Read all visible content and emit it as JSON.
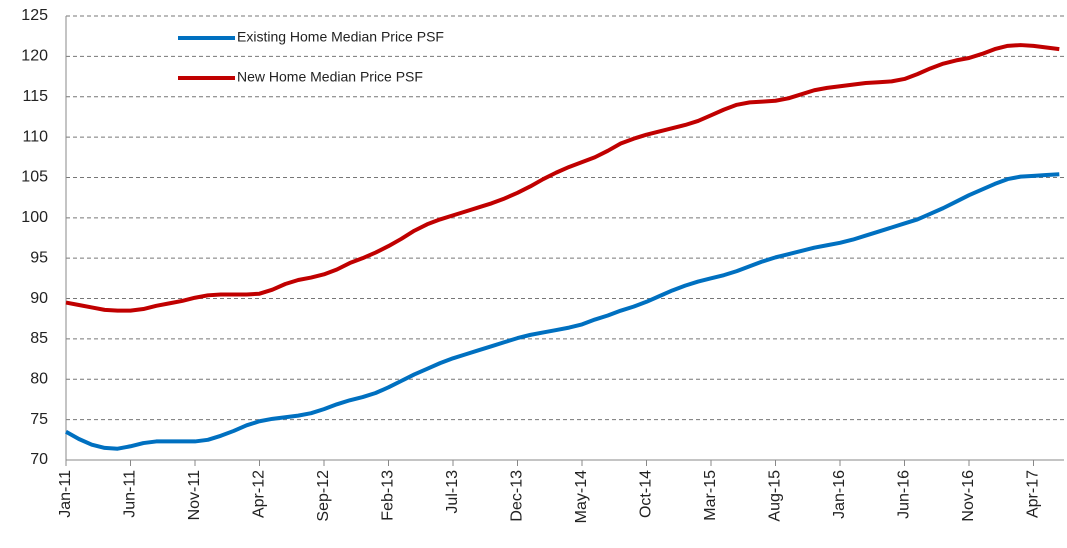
{
  "chart_data": {
    "type": "line",
    "categories": [
      "Jan-11",
      null,
      null,
      null,
      null,
      "Jun-11",
      null,
      null,
      null,
      null,
      "Nov-11",
      null,
      null,
      null,
      null,
      "Apr-12",
      null,
      null,
      null,
      null,
      "Sep-12",
      null,
      null,
      null,
      null,
      "Feb-13",
      null,
      null,
      null,
      null,
      "Jul-13",
      null,
      null,
      null,
      null,
      "Dec-13",
      null,
      null,
      null,
      null,
      "May-14",
      null,
      null,
      null,
      null,
      "Oct-14",
      null,
      null,
      null,
      null,
      "Mar-15",
      null,
      null,
      null,
      null,
      "Aug-15",
      null,
      null,
      null,
      null,
      "Jan-16",
      null,
      null,
      null,
      null,
      "Jun-16",
      null,
      null,
      null,
      null,
      "Nov-16",
      null,
      null,
      null,
      null,
      "Apr-17",
      null,
      null
    ],
    "series": [
      {
        "name": "Existing Home Median Price PSF",
        "color": "#0070c0",
        "values": [
          73.5,
          72.6,
          71.9,
          71.5,
          71.4,
          71.7,
          72.1,
          72.3,
          72.3,
          72.3,
          72.3,
          72.5,
          73,
          73.6,
          74.3,
          74.8,
          75.1,
          75.3,
          75.5,
          75.8,
          76.3,
          76.9,
          77.4,
          77.8,
          78.3,
          79,
          79.8,
          80.6,
          81.3,
          82,
          82.6,
          83.1,
          83.6,
          84.1,
          84.6,
          85.1,
          85.5,
          85.8,
          86.1,
          86.4,
          86.8,
          87.4,
          87.9,
          88.5,
          89,
          89.6,
          90.3,
          91,
          91.6,
          92.1,
          92.5,
          92.9,
          93.4,
          94,
          94.6,
          95.1,
          95.5,
          95.9,
          96.3,
          96.6,
          96.9,
          97.3,
          97.8,
          98.3,
          98.8,
          99.3,
          99.8,
          100.5,
          101.2,
          102,
          102.8,
          103.5,
          104.2,
          104.8,
          105.1,
          105.2,
          105.3,
          105.4
        ]
      },
      {
        "name": "New Home Median Price PSF",
        "color": "#c00000",
        "values": [
          89.5,
          89.2,
          88.9,
          88.6,
          88.5,
          88.5,
          88.7,
          89.1,
          89.4,
          89.7,
          90.1,
          90.4,
          90.5,
          90.5,
          90.5,
          90.6,
          91.1,
          91.8,
          92.3,
          92.6,
          93,
          93.6,
          94.4,
          95,
          95.7,
          96.5,
          97.4,
          98.4,
          99.2,
          99.8,
          100.3,
          100.8,
          101.3,
          101.8,
          102.4,
          103.1,
          103.9,
          104.8,
          105.6,
          106.3,
          106.9,
          107.5,
          108.3,
          109.2,
          109.8,
          110.3,
          110.7,
          111.1,
          111.5,
          112,
          112.7,
          113.4,
          114,
          114.3,
          114.4,
          114.5,
          114.8,
          115.3,
          115.8,
          116.1,
          116.3,
          116.5,
          116.7,
          116.8,
          116.9,
          117.2,
          117.8,
          118.5,
          119.1,
          119.5,
          119.8,
          120.3,
          120.9,
          121.3,
          121.4,
          121.3,
          121.1,
          120.9
        ]
      }
    ],
    "ylim": [
      70,
      125
    ],
    "yticks": [
      70,
      75,
      80,
      85,
      90,
      95,
      100,
      105,
      110,
      115,
      120,
      125
    ],
    "grid": true,
    "legend": "upper left"
  }
}
